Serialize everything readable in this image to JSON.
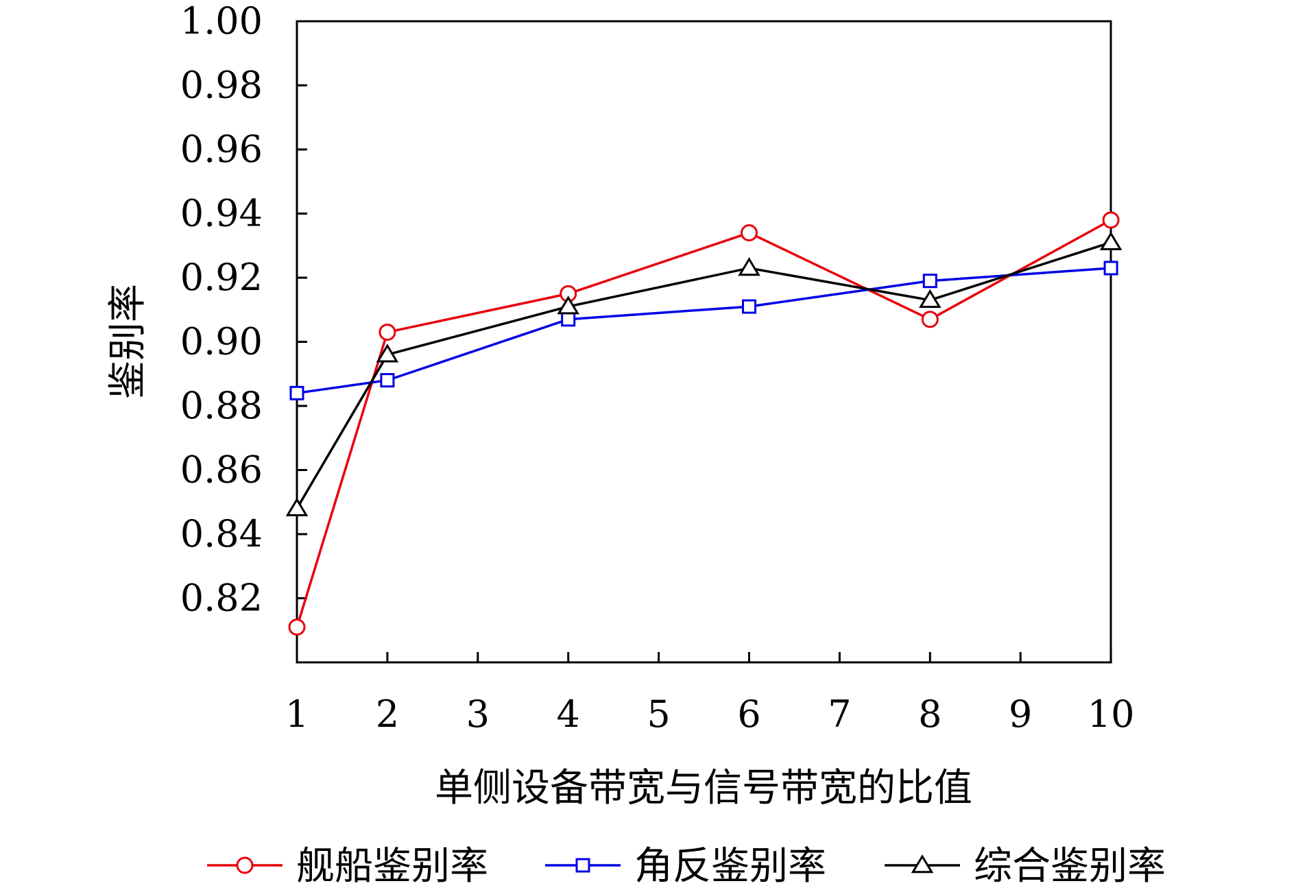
{
  "chart_data": {
    "type": "line",
    "title": "",
    "xlabel": "单侧设备带宽与信号带宽的比值",
    "ylabel": "鉴别率",
    "categories": [
      "1",
      "2",
      "3",
      "4",
      "5",
      "6",
      "7",
      "8",
      "9",
      "10"
    ],
    "ylim": [
      0.8,
      1.0
    ],
    "yticks": [
      "0.82",
      "0.84",
      "0.86",
      "0.88",
      "0.90",
      "0.92",
      "0.94",
      "0.96",
      "0.98",
      "1.00"
    ],
    "grid": false,
    "legend_position": "bottom",
    "series": [
      {
        "name": "舰船鉴别率",
        "color": "#e8000b",
        "marker": "circle",
        "x": [
          1,
          2,
          4,
          6,
          8,
          10
        ],
        "values": [
          0.811,
          0.903,
          0.915,
          0.934,
          0.907,
          0.938
        ]
      },
      {
        "name": "角反鉴别率",
        "color": "#0000e6",
        "marker": "square",
        "x": [
          1,
          2,
          4,
          6,
          8,
          10
        ],
        "values": [
          0.884,
          0.888,
          0.907,
          0.911,
          0.919,
          0.923
        ]
      },
      {
        "name": "综合鉴别率",
        "color": "#000000",
        "marker": "triangle",
        "x": [
          1,
          2,
          4,
          6,
          8,
          10
        ],
        "values": [
          0.848,
          0.896,
          0.911,
          0.923,
          0.913,
          0.931
        ]
      }
    ]
  }
}
